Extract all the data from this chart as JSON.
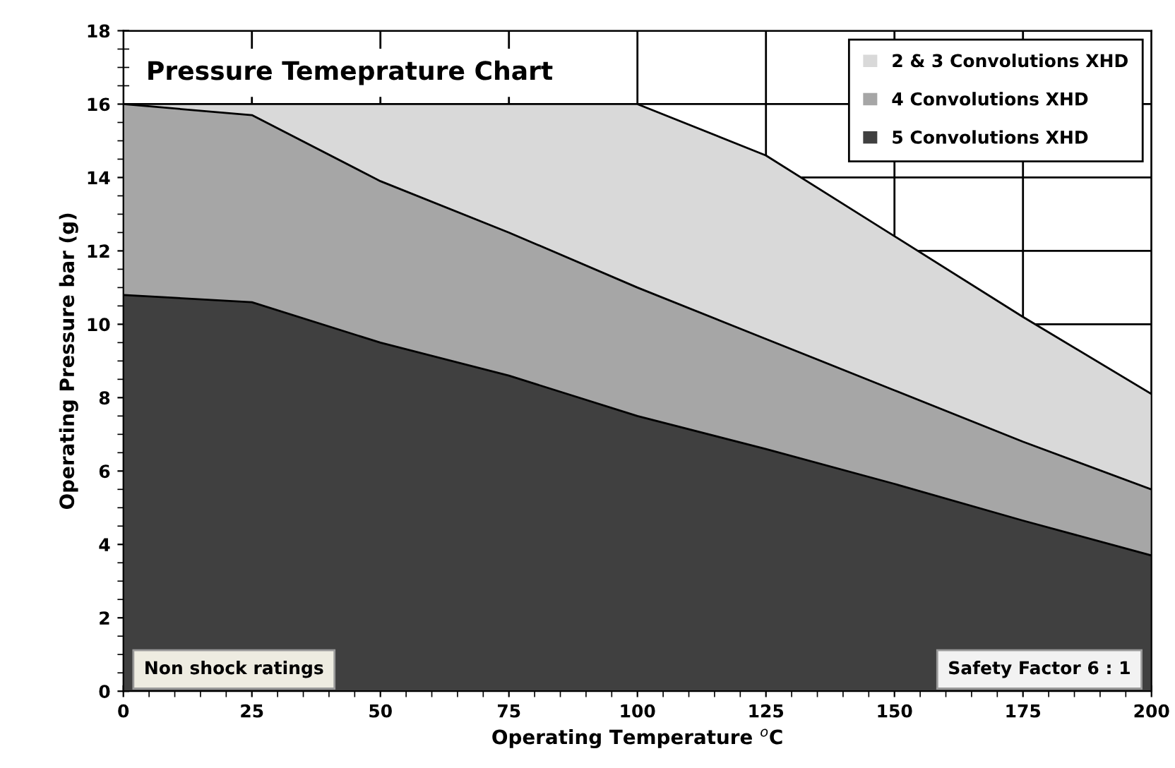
{
  "chart_data": {
    "type": "area",
    "title": "Pressure Temeprature Chart",
    "xlabel": "Operating Temperature $^{o}$C",
    "ylabel": "Operating Pressure bar (g)",
    "x": [
      0,
      25,
      50,
      75,
      100,
      125,
      150,
      175,
      200
    ],
    "series": [
      {
        "name": "2 & 3 Convolutions XHD",
        "color": "#d9d9d9",
        "values": [
          16,
          16,
          16,
          16,
          16,
          14.6,
          12.4,
          10.2,
          8.1
        ]
      },
      {
        "name": "4 Convolutions XHD",
        "color": "#a6a6a6",
        "values": [
          16,
          15.7,
          13.9,
          12.5,
          11.0,
          9.6,
          8.2,
          6.8,
          5.5
        ]
      },
      {
        "name": "5 Convolutions XHD",
        "color": "#404040",
        "values": [
          10.8,
          10.6,
          9.5,
          8.6,
          7.5,
          6.6,
          5.65,
          4.65,
          3.7
        ]
      }
    ],
    "xlim": [
      0,
      200
    ],
    "ylim": [
      0,
      18
    ],
    "xticks": [
      0,
      25,
      50,
      75,
      100,
      125,
      150,
      175,
      200
    ],
    "yticks": [
      0,
      2,
      4,
      6,
      8,
      10,
      12,
      14,
      16,
      18
    ],
    "grid": true,
    "legend": "top right",
    "annotations": [
      "Non shock ratings",
      "Safety Factor 6 : 1"
    ]
  }
}
